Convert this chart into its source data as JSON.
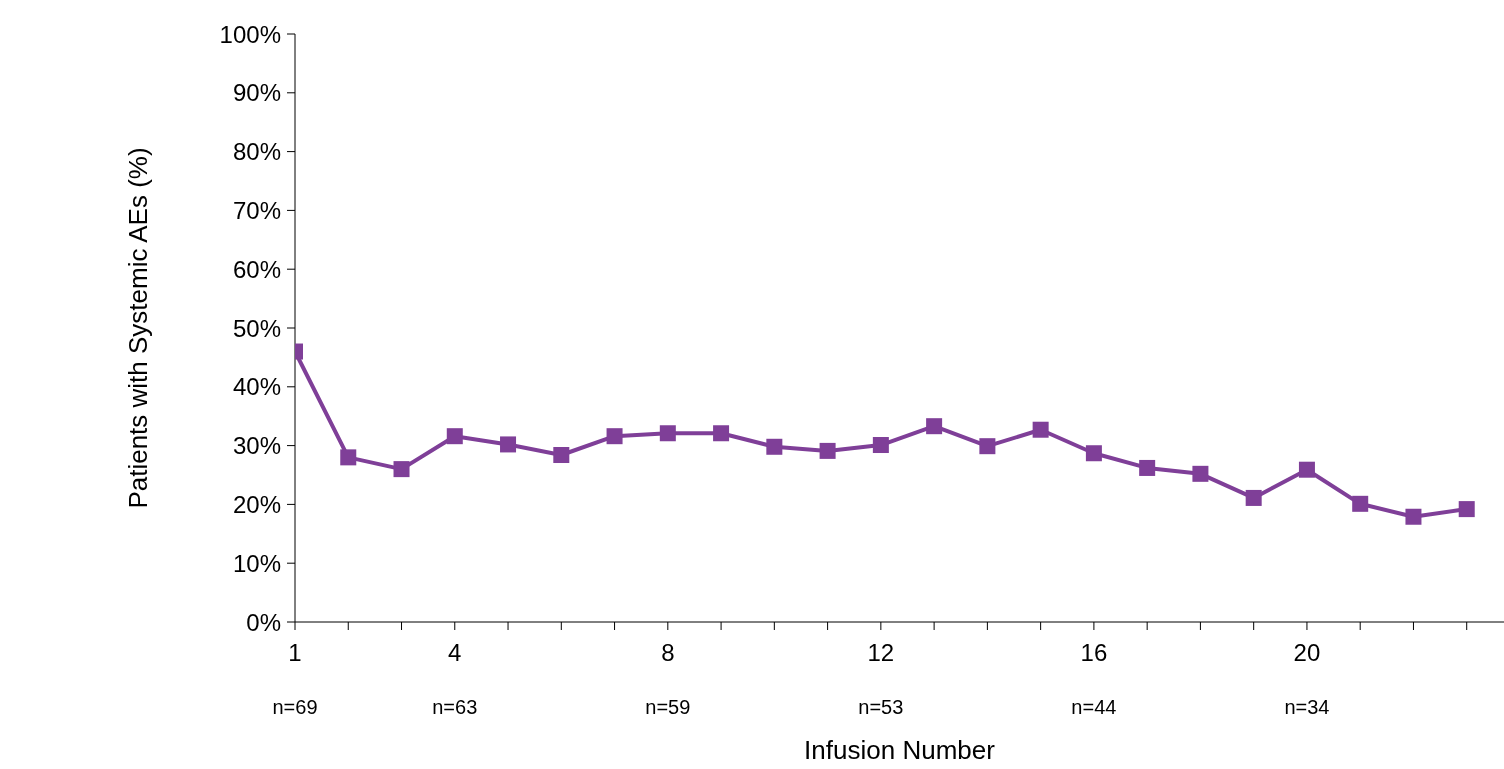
{
  "chart_data": {
    "type": "line",
    "xlabel": "Infusion Number",
    "ylabel": "Patients with Systemic AEs (%)",
    "x": [
      1,
      2,
      3,
      4,
      5,
      6,
      7,
      8,
      9,
      10,
      11,
      12,
      13,
      14,
      15,
      16,
      17,
      18,
      19,
      20,
      21,
      22,
      23
    ],
    "series": [
      {
        "color": "#7f3f98",
        "values": [
          46,
          28,
          26,
          31.6,
          30.2,
          28.4,
          31.6,
          32.1,
          32.1,
          29.8,
          29.1,
          30.1,
          33.3,
          29.9,
          32.7,
          28.7,
          26.2,
          25.2,
          21.1,
          25.9,
          20.1,
          17.9,
          19.2
        ]
      }
    ],
    "xlim": [
      1,
      23.7
    ],
    "xticks": [
      1,
      {
        "value": 2,
        "label": null
      },
      {
        "value": 3,
        "label": null
      },
      4,
      {
        "value": 5,
        "label": null
      },
      {
        "value": 6,
        "label": null
      },
      {
        "value": 7,
        "label": null
      },
      8,
      {
        "value": 9,
        "label": null
      },
      {
        "value": 10,
        "label": null
      },
      {
        "value": 11,
        "label": null
      },
      12,
      {
        "value": 13,
        "label": null
      },
      {
        "value": 14,
        "label": null
      },
      {
        "value": 15,
        "label": null
      },
      16,
      {
        "value": 17,
        "label": null
      },
      {
        "value": 18,
        "label": null
      },
      {
        "value": 19,
        "label": null
      },
      20,
      {
        "value": 21,
        "label": null
      },
      {
        "value": 22,
        "label": null
      },
      {
        "value": 23,
        "label": null
      }
    ],
    "ylim": [
      0,
      100
    ],
    "yticks": [
      {
        "value": 0,
        "label": "0%"
      },
      {
        "value": 10,
        "label": "10%"
      },
      {
        "value": 20,
        "label": "20%"
      },
      {
        "value": 30,
        "label": "30%"
      },
      {
        "value": 40,
        "label": "40%"
      },
      {
        "value": 50,
        "label": "50%"
      },
      {
        "value": 60,
        "label": "60%"
      },
      {
        "value": 70,
        "label": "70%"
      },
      {
        "value": 80,
        "label": "80%"
      },
      {
        "value": 90,
        "label": "90%"
      },
      {
        "value": 100,
        "label": "100%"
      }
    ],
    "annotations": [
      "n=69",
      "n=63",
      "n=59",
      "n=53",
      "n=44",
      "n=34"
    ],
    "grid": false,
    "legend": false,
    "marker": "square",
    "line_style": "solid"
  }
}
